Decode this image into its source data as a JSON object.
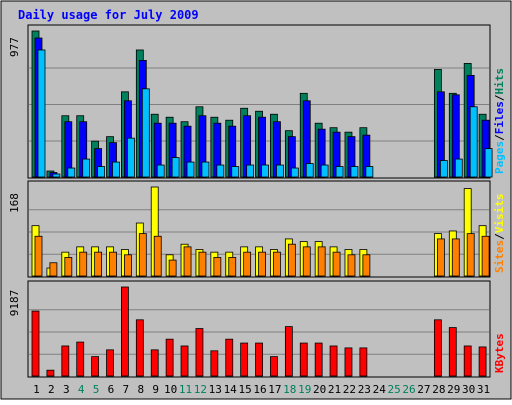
{
  "chart_data": {
    "type": "bar",
    "title": "Daily usage for July 2009",
    "days": [
      "1",
      "2",
      "3",
      "4",
      "5",
      "6",
      "7",
      "8",
      "9",
      "10",
      "11",
      "12",
      "13",
      "14",
      "15",
      "16",
      "17",
      "18",
      "19",
      "20",
      "21",
      "22",
      "23",
      "24",
      "25",
      "26",
      "27",
      "28",
      "29",
      "30",
      "31"
    ],
    "weekend_days": [
      4,
      5,
      11,
      12,
      18,
      19,
      25,
      26
    ],
    "colors": {
      "background": "#c0c0c0",
      "title": "#0000ff",
      "hits": "#00805c",
      "files": "#0000ff",
      "pages": "#00c0ff",
      "visits": "#ffff00",
      "sites": "#ff8000",
      "kbytes": "#ff0000",
      "weekend_label": "#00805c"
    },
    "panels": [
      {
        "name": "hits-files-pages",
        "ymax_label": "977",
        "ymax": 977,
        "legend": [
          "Pages",
          "/",
          "Files",
          "/",
          "Hits"
        ],
        "series": [
          {
            "name": "Hits",
            "values": [
              977,
              40,
              410,
              410,
              240,
              270,
              570,
              850,
              420,
              400,
              370,
              470,
              400,
              380,
              460,
              440,
              420,
              310,
              560,
              360,
              330,
              300,
              330,
              null,
              null,
              null,
              null,
              720,
              560,
              760,
              420
            ]
          },
          {
            "name": "Files",
            "values": [
              930,
              30,
              370,
              370,
              190,
              230,
              510,
              780,
              360,
              360,
              340,
              410,
              360,
              340,
              410,
              400,
              370,
              270,
              510,
              320,
              300,
              270,
              280,
              null,
              null,
              null,
              null,
              570,
              550,
              680,
              380
            ]
          },
          {
            "name": "Pages",
            "values": [
              850,
              20,
              60,
              120,
              70,
              100,
              260,
              590,
              80,
              130,
              100,
              100,
              80,
              70,
              80,
              80,
              80,
              60,
              90,
              80,
              70,
              70,
              70,
              null,
              null,
              null,
              null,
              110,
              120,
              470,
              190
            ]
          }
        ]
      },
      {
        "name": "visits-sites",
        "ymax_label": "168",
        "ymax": 168,
        "legend": [
          "Sites",
          "/",
          "Visits"
        ],
        "series": [
          {
            "name": "Visits",
            "values": [
              95,
              15,
              45,
              55,
              55,
              55,
              50,
              100,
              168,
              40,
              60,
              50,
              45,
              45,
              55,
              55,
              50,
              70,
              65,
              65,
              55,
              50,
              50,
              null,
              null,
              null,
              null,
              80,
              85,
              165,
              95
            ]
          },
          {
            "name": "Sites",
            "values": [
              75,
              25,
              35,
              45,
              45,
              45,
              40,
              80,
              75,
              30,
              55,
              45,
              35,
              35,
              45,
              45,
              45,
              60,
              55,
              55,
              45,
              40,
              40,
              null,
              null,
              null,
              null,
              70,
              70,
              80,
              75
            ]
          }
        ]
      },
      {
        "name": "kbytes",
        "ymax_label": "9187",
        "ymax": 9187,
        "legend": [
          "KBytes"
        ],
        "series": [
          {
            "name": "KBytes",
            "values": [
              6700,
              600,
              3100,
              3500,
              2000,
              2700,
              9187,
              5800,
              2700,
              3800,
              3100,
              4900,
              2600,
              3800,
              3400,
              3400,
              2000,
              5100,
              3400,
              3400,
              3100,
              2900,
              2900,
              null,
              null,
              null,
              null,
              5800,
              5000,
              3100,
              3000
            ]
          }
        ]
      }
    ]
  }
}
